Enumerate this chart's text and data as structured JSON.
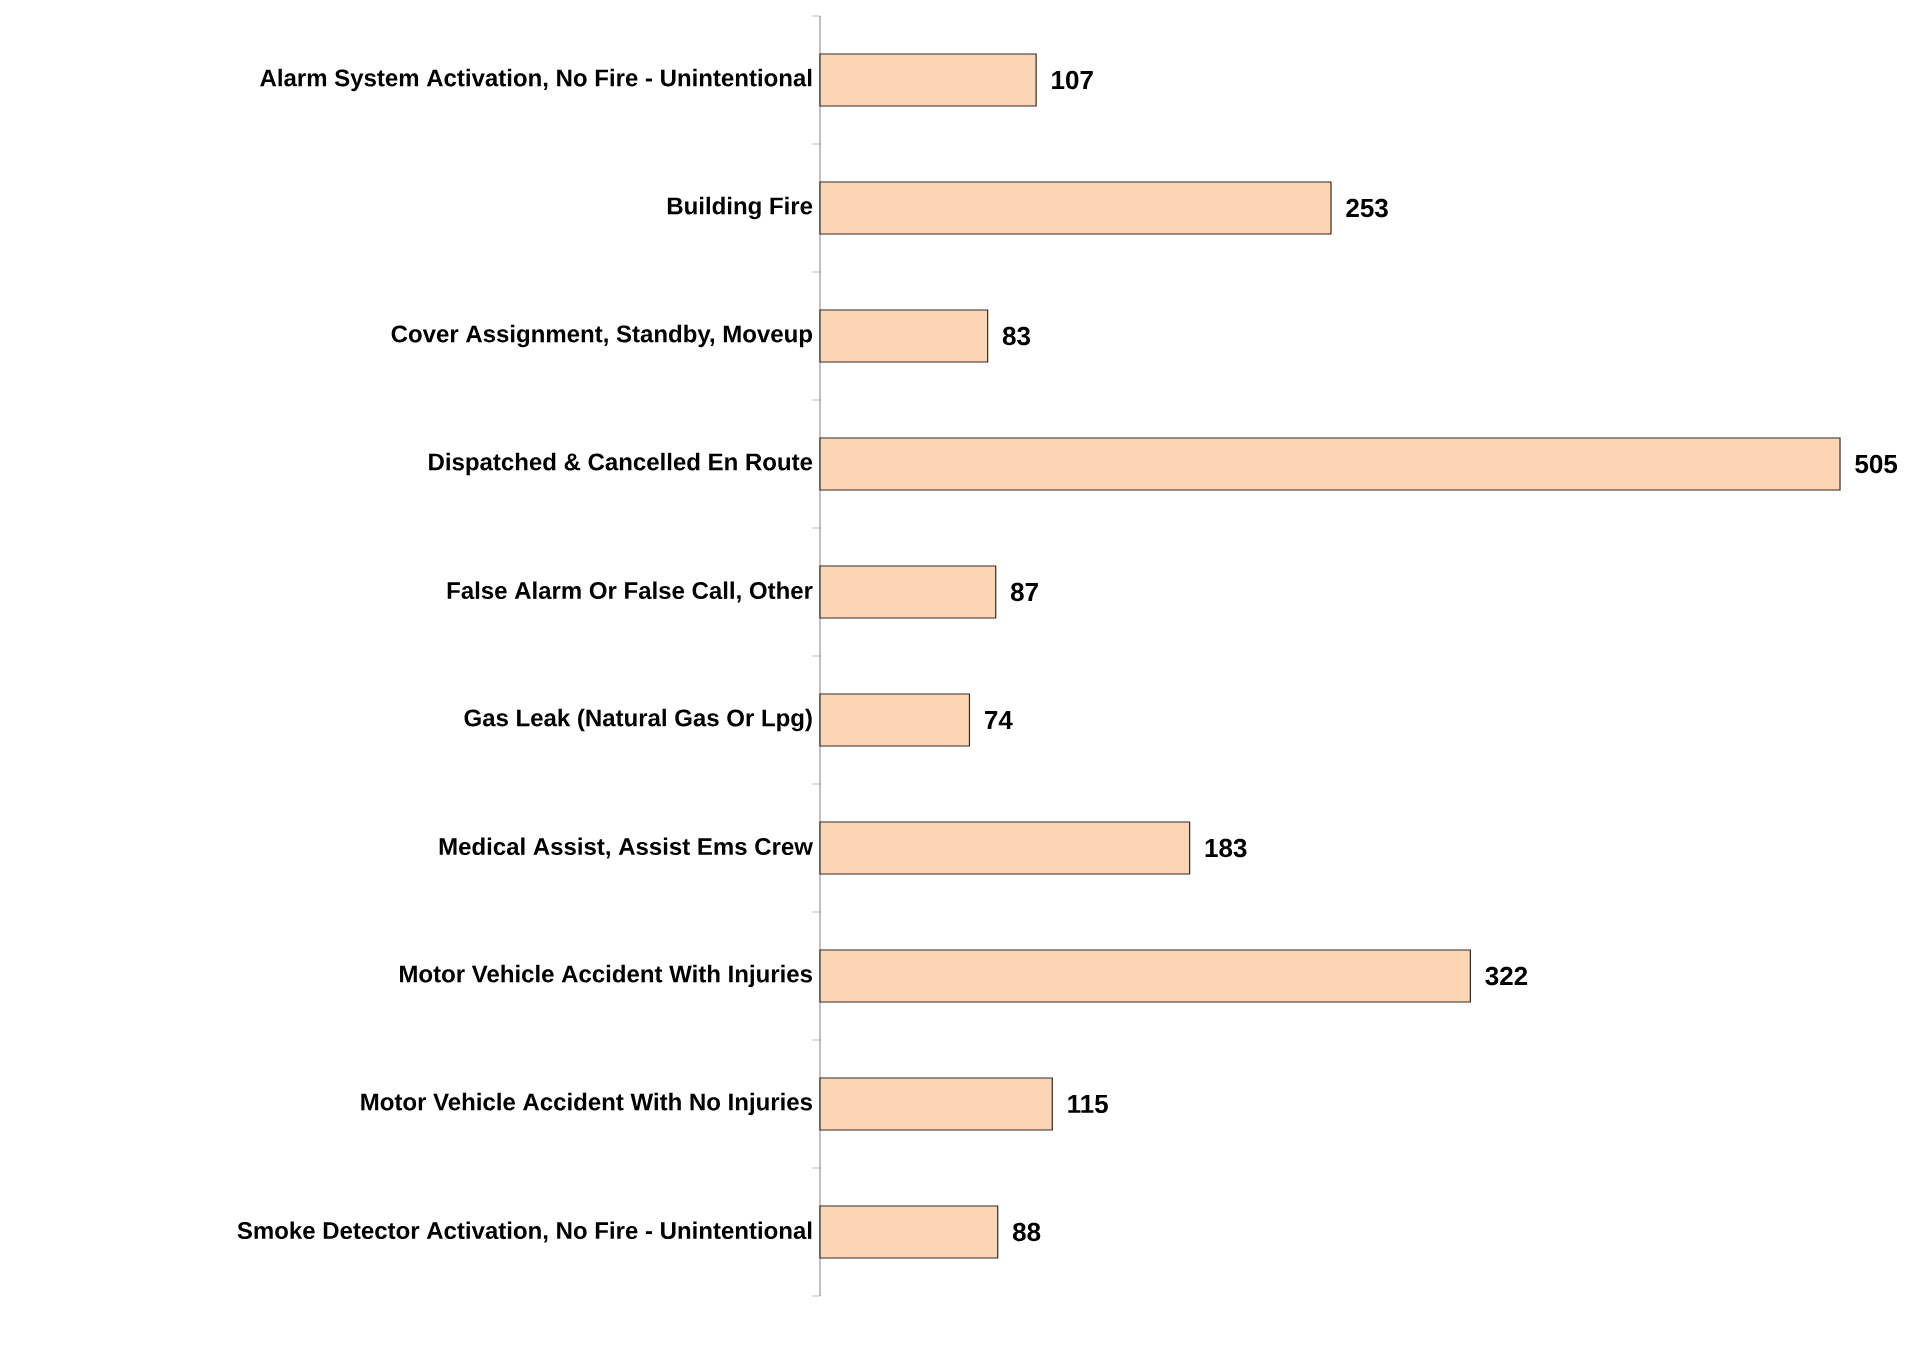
{
  "chart_data": {
    "type": "bar",
    "orientation": "horizontal",
    "data_labels": true,
    "color": "#fcd5b4",
    "categories": [
      "Alarm System Activation, No Fire - Unintentional",
      "Building Fire",
      "Cover Assignment, Standby, Moveup",
      "Dispatched & Cancelled En Route",
      "False Alarm Or False Call, Other",
      "Gas Leak (Natural Gas Or Lpg)",
      "Medical Assist, Assist Ems Crew",
      "Motor Vehicle Accident With Injuries",
      "Motor Vehicle Accident With No Injuries",
      "Smoke Detector Activation, No Fire - Unintentional"
    ],
    "values": [
      107,
      253,
      83,
      505,
      87,
      74,
      183,
      322,
      115,
      88
    ]
  }
}
